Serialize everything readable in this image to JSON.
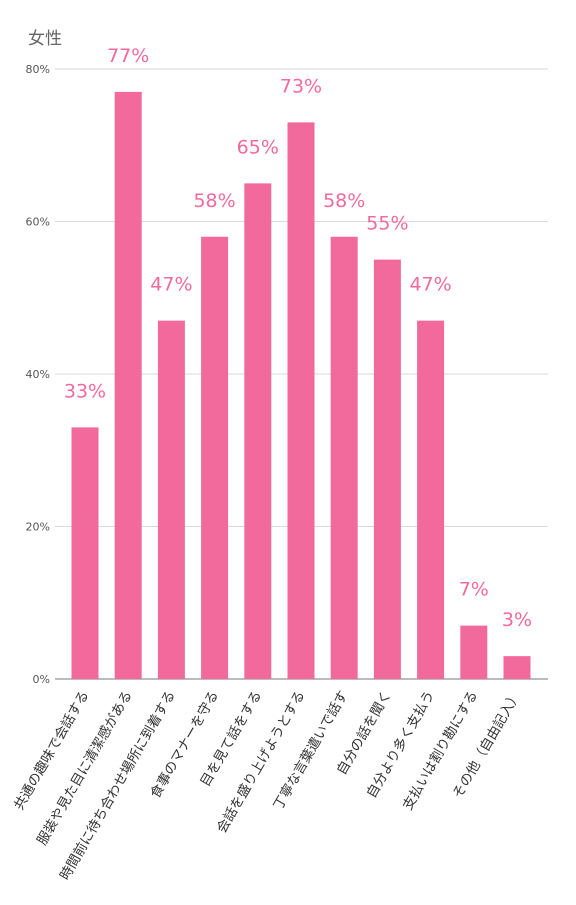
{
  "chart_data": {
    "type": "bar",
    "title": "女性",
    "categories": [
      "共通の趣味で会話する",
      "服装や見た目に清潔感がある",
      "時間前に待ち合わせ場所に到着する",
      "食事のマナーを守る",
      "目を見て話をする",
      "会話を盛り上げようとする",
      "丁寧な言葉遣いで話す",
      "自分の話を聞く",
      "自分より多く支払う",
      "支払いは割り勘にする",
      "その他（自由記入）"
    ],
    "values": [
      33,
      77,
      47,
      58,
      65,
      73,
      58,
      55,
      47,
      7,
      3
    ],
    "value_labels": [
      "33%",
      "77%",
      "47%",
      "58%",
      "65%",
      "73%",
      "58%",
      "55%",
      "47%",
      "7%",
      "3%"
    ],
    "y_tick_values": [
      0,
      20,
      40,
      60,
      80
    ],
    "y_tick_labels": [
      "0%",
      "20%",
      "40%",
      "60%",
      "80%"
    ],
    "ylim": [
      0,
      80
    ],
    "grid": true,
    "bar_color": "#f26a9b",
    "label_color": "#f26a9b",
    "tick_color": "#555555",
    "grid_color": "#d9d9d9"
  }
}
